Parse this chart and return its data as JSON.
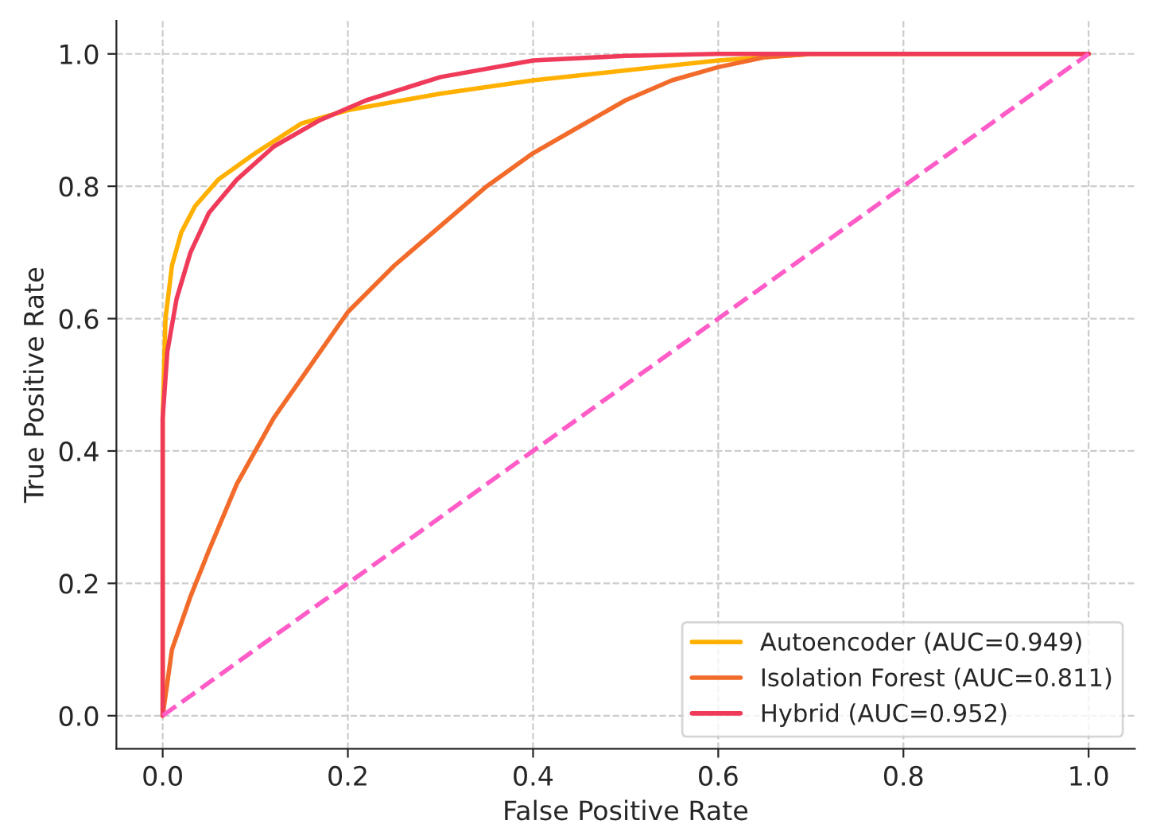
{
  "chart_data": {
    "type": "line",
    "xlabel": "False Positive Rate",
    "ylabel": "True Positive Rate",
    "xlim": [
      -0.05,
      1.05
    ],
    "ylim": [
      -0.05,
      1.05
    ],
    "xticks": [
      {
        "value": 0,
        "label": "0.0"
      },
      {
        "value": 0.2,
        "label": "0.2"
      },
      {
        "value": 0.4,
        "label": "0.4"
      },
      {
        "value": 0.6,
        "label": "0.6"
      },
      {
        "value": 0.8,
        "label": "0.8"
      },
      {
        "value": 1,
        "label": "1.0"
      }
    ],
    "yticks": [
      {
        "value": 0,
        "label": "0.0"
      },
      {
        "value": 0.2,
        "label": "0.2"
      },
      {
        "value": 0.4,
        "label": "0.4"
      },
      {
        "value": 0.6,
        "label": "0.6"
      },
      {
        "value": 0.8,
        "label": "0.8"
      },
      {
        "value": 1,
        "label": "1.0"
      }
    ],
    "grid": true,
    "legend": "bottom right",
    "line_style": "solid",
    "marker": "none",
    "series": [
      {
        "name": "Autoencoder (AUC=0.949)",
        "color": "#ffb000",
        "x": [
          0,
          0,
          0.003,
          0.01,
          0.02,
          0.035,
          0.06,
          0.1,
          0.15,
          0.2,
          0.3,
          0.4,
          0.5,
          0.6,
          0.7,
          1
        ],
        "values": [
          0,
          0.45,
          0.6,
          0.68,
          0.73,
          0.77,
          0.81,
          0.85,
          0.895,
          0.915,
          0.94,
          0.96,
          0.975,
          0.99,
          1,
          1
        ]
      },
      {
        "name": "Isolation Forest (AUC=0.811)",
        "color": "#f26b2a",
        "x": [
          0,
          0.01,
          0.03,
          0.05,
          0.08,
          0.12,
          0.16,
          0.2,
          0.25,
          0.3,
          0.35,
          0.4,
          0.45,
          0.5,
          0.55,
          0.6,
          0.65,
          0.7,
          1
        ],
        "values": [
          0,
          0.1,
          0.18,
          0.25,
          0.35,
          0.45,
          0.53,
          0.61,
          0.68,
          0.74,
          0.8,
          0.85,
          0.89,
          0.93,
          0.96,
          0.98,
          0.995,
          1,
          1
        ]
      },
      {
        "name": "Hybrid (AUC=0.952)",
        "color": "#f03a5a",
        "x": [
          0,
          0,
          0.005,
          0.015,
          0.03,
          0.05,
          0.08,
          0.12,
          0.17,
          0.22,
          0.3,
          0.4,
          0.5,
          0.6,
          1
        ],
        "values": [
          0,
          0.45,
          0.55,
          0.63,
          0.7,
          0.76,
          0.81,
          0.86,
          0.9,
          0.93,
          0.965,
          0.99,
          0.997,
          1,
          1
        ]
      },
      {
        "color": "#ff5cc8",
        "line_style": "dashed",
        "x": [
          0,
          1
        ],
        "values": [
          0,
          1
        ]
      }
    ]
  }
}
